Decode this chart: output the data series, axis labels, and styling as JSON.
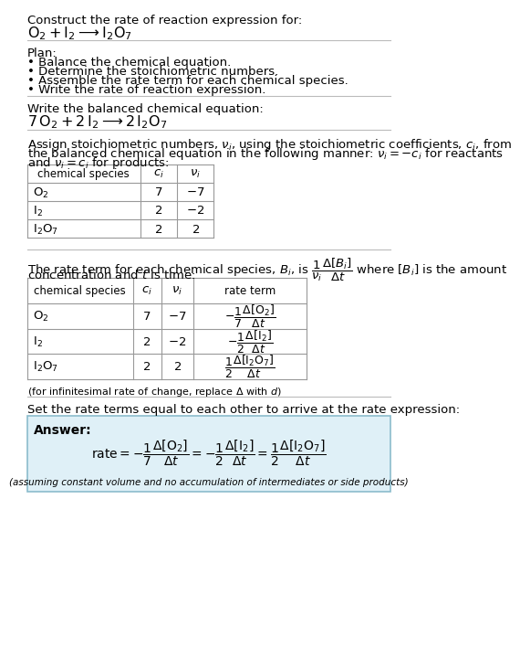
{
  "title": "Construct the rate of reaction expression for:",
  "plan_header": "Plan:",
  "plan_items": [
    "• Balance the chemical equation.",
    "• Determine the stoichiometric numbers.",
    "• Assemble the rate term for each chemical species.",
    "• Write the rate of reaction expression."
  ],
  "balanced_header": "Write the balanced chemical equation:",
  "stoich_line1": "Assign stoichiometric numbers, $\\nu_i$, using the stoichiometric coefficients, $c_i$, from",
  "stoich_line2": "the balanced chemical equation in the following manner: $\\nu_i = -c_i$ for reactants",
  "stoich_line3": "and $\\nu_i = c_i$ for products:",
  "rate_line1": "The rate term for each chemical species, $B_i$, is $\\dfrac{1}{\\nu_i}\\dfrac{\\Delta[B_i]}{\\Delta t}$ where $[B_i]$ is the amount",
  "rate_line2": "concentration and $t$ is time:",
  "infinitesimal_note": "(for infinitesimal rate of change, replace Δ with $d$)",
  "set_equal_text": "Set the rate terms equal to each other to arrive at the rate expression:",
  "answer_box_color": "#dff0f7",
  "answer_box_border": "#8bbccc",
  "answer_label": "Answer:",
  "answer_note": "(assuming constant volume and no accumulation of intermediates or side products)",
  "bg_color": "#ffffff",
  "text_color": "#000000",
  "table_border_color": "#999999",
  "fs": 9.5
}
